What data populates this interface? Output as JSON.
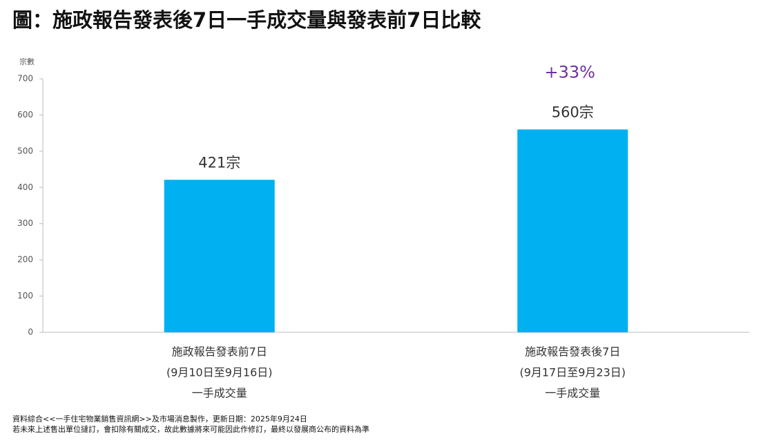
{
  "chart_data": {
    "type": "bar",
    "title": "圖：施政報告發表後7日一手成交量與發表前7日比較",
    "y_label": "宗數",
    "categories": [
      [
        "施政報告發表前7日",
        "(9月10日至9月16日)",
        "一手成交量"
      ],
      [
        "施政報告發表後7日",
        "(9月17日至9月23日)",
        "一手成交量"
      ]
    ],
    "values": [
      421,
      560
    ],
    "value_labels": [
      "421宗",
      "560宗"
    ],
    "color": "#00b0f0",
    "annotation": "+33%",
    "annotation_color": "#7030a0",
    "ylim": [
      0,
      700
    ],
    "yticks": [
      0,
      100,
      200,
      300,
      400,
      500,
      600,
      700
    ],
    "grid": false,
    "notes": [
      "資料綜合<<一手住宅物業銷售資訊網>>及市場消息製作，更新日期：2025年9月24日",
      "若未來上述售出單位撻訂，會扣除有關成交，故此數據將來可能因此作修訂，最終以發展商公布的資料為準"
    ]
  }
}
